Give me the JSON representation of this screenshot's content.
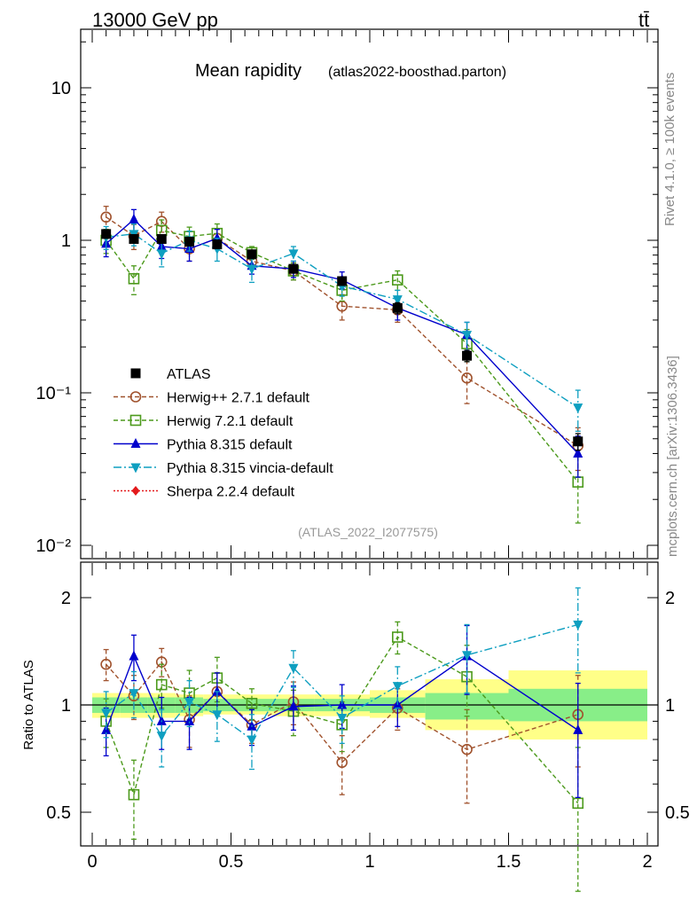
{
  "header": {
    "energy": "13000 GeV pp",
    "process": "tt̄",
    "title_main": "Mean rapidity",
    "title_sub": "(atlas2022-boosthad.parton)",
    "analysis_id": "(ATLAS_2022_I2077575)",
    "side_rivet": "Rivet 4.1.0, ≥ 100k events",
    "side_mcplots": "mcplots.cern.ch [arXiv:1306.3436]"
  },
  "chart_data": [
    {
      "type": "scatter",
      "scale": "log",
      "title": "Mean rapidity (atlas2022-boosthad.parton)",
      "ylim": [
        0.01,
        25
      ],
      "y_ticks": [
        {
          "value": 10,
          "label": "10"
        },
        {
          "value": 1,
          "label": "1"
        },
        {
          "value": 0.1,
          "label": "10⁻¹"
        },
        {
          "value": 0.01,
          "label": "10⁻²"
        }
      ],
      "x": [
        0.05,
        0.15,
        0.25,
        0.35,
        0.45,
        0.575,
        0.725,
        0.9,
        1.1,
        1.35,
        1.75
      ],
      "series": [
        {
          "name": "ATLAS",
          "color": "#000000",
          "marker": "square-filled",
          "line": "none",
          "values": [
            1.1,
            1.02,
            1.02,
            0.98,
            0.94,
            0.81,
            0.65,
            0.54,
            0.36,
            0.175,
            0.048
          ],
          "errors": [
            0.07,
            0.06,
            0.06,
            0.06,
            0.05,
            0.04,
            0.04,
            0.03,
            0.03,
            0.015,
            0.006
          ]
        },
        {
          "name": "Herwig++ 2.7.1 default",
          "color": "#a0522d",
          "marker": "circle-open",
          "line": "dashed",
          "values": [
            1.42,
            1.07,
            1.33,
            0.88,
            1.03,
            0.73,
            0.63,
            0.37,
            0.35,
            0.125,
            0.045
          ],
          "errors": [
            0.25,
            0.2,
            0.2,
            0.15,
            0.15,
            0.08,
            0.08,
            0.07,
            0.06,
            0.04,
            0.014
          ]
        },
        {
          "name": "Herwig 7.2.1 default",
          "color": "#4c9a1c",
          "marker": "square-open",
          "line": "dashed",
          "values": [
            1.0,
            0.56,
            1.16,
            1.06,
            1.11,
            0.83,
            0.63,
            0.47,
            0.55,
            0.21,
            0.026
          ],
          "errors": [
            0.18,
            0.12,
            0.2,
            0.16,
            0.17,
            0.08,
            0.08,
            0.07,
            0.08,
            0.05,
            0.012
          ]
        },
        {
          "name": "Pythia 8.315 default",
          "color": "#0000cc",
          "marker": "triangle-up-filled",
          "line": "solid",
          "values": [
            0.95,
            1.37,
            0.91,
            0.88,
            1.03,
            0.68,
            0.65,
            0.55,
            0.36,
            0.24,
            0.04
          ],
          "errors": [
            0.17,
            0.22,
            0.15,
            0.15,
            0.15,
            0.08,
            0.08,
            0.07,
            0.06,
            0.05,
            0.012
          ]
        },
        {
          "name": "Pythia 8.315 vincia-default",
          "color": "#0e9fc0",
          "marker": "triangle-down-filled",
          "line": "dashdot",
          "values": [
            1.05,
            1.1,
            0.82,
            1.0,
            0.88,
            0.65,
            0.82,
            0.5,
            0.41,
            0.24,
            0.08
          ],
          "errors": [
            0.18,
            0.18,
            0.15,
            0.15,
            0.15,
            0.12,
            0.09,
            0.07,
            0.06,
            0.05,
            0.024
          ]
        },
        {
          "name": "Sherpa 2.2.4 default",
          "color": "#e31a1c",
          "marker": "diamond-filled",
          "line": "dotted",
          "values": [],
          "errors": []
        }
      ]
    },
    {
      "type": "scatter",
      "scale": "log",
      "ylabel": "Ratio to ATLAS",
      "xlim": [
        0,
        2
      ],
      "ylim": [
        0.38,
        2.5
      ],
      "y_ticks": [
        {
          "value": 2,
          "label": "2"
        },
        {
          "value": 1,
          "label": "1"
        },
        {
          "value": 0.5,
          "label": "0.5"
        }
      ],
      "x_ticks": [
        {
          "value": 0,
          "label": "0"
        },
        {
          "value": 0.5,
          "label": "0.5"
        },
        {
          "value": 1,
          "label": "1"
        },
        {
          "value": 1.5,
          "label": "1.5"
        },
        {
          "value": 2,
          "label": "2"
        }
      ],
      "bin_edges": [
        0,
        0.1,
        0.2,
        0.3,
        0.4,
        0.5,
        0.65,
        0.8,
        1.0,
        1.2,
        1.5,
        2.0
      ],
      "band_stat": [
        [
          0.95,
          1.05
        ],
        [
          0.95,
          1.05
        ],
        [
          0.95,
          1.05
        ],
        [
          0.95,
          1.05
        ],
        [
          0.96,
          1.04
        ],
        [
          0.96,
          1.04
        ],
        [
          0.96,
          1.04
        ],
        [
          0.96,
          1.04
        ],
        [
          0.95,
          1.05
        ],
        [
          0.91,
          1.08
        ],
        [
          0.9,
          1.11
        ]
      ],
      "band_total": [
        [
          0.92,
          1.08
        ],
        [
          0.92,
          1.08
        ],
        [
          0.92,
          1.08
        ],
        [
          0.93,
          1.07
        ],
        [
          0.94,
          1.07
        ],
        [
          0.94,
          1.07
        ],
        [
          0.93,
          1.07
        ],
        [
          0.93,
          1.07
        ],
        [
          0.92,
          1.1
        ],
        [
          0.85,
          1.18
        ],
        [
          0.8,
          1.25
        ]
      ],
      "ratios": [
        {
          "name": "Herwig++ 2.7.1 default",
          "values": [
            1.3,
            1.06,
            1.32,
            0.91,
            1.09,
            0.88,
            1.02,
            0.69,
            0.98,
            0.75,
            0.94
          ],
          "errors": [
            0.13,
            0.15,
            0.12,
            0.15,
            0.14,
            0.1,
            0.14,
            0.13,
            0.13,
            0.22,
            0.27
          ]
        },
        {
          "name": "Herwig 7.2.1 default",
          "values": [
            0.9,
            0.56,
            1.14,
            1.08,
            1.19,
            1.01,
            0.96,
            0.88,
            1.55,
            1.2,
            0.53
          ],
          "errors": [
            0.14,
            0.14,
            0.16,
            0.17,
            0.17,
            0.1,
            0.14,
            0.14,
            0.16,
            0.27,
            0.23
          ]
        },
        {
          "name": "Pythia 8.315 default",
          "values": [
            0.85,
            1.37,
            0.9,
            0.9,
            1.09,
            0.87,
            0.99,
            1.0,
            1.0,
            1.37,
            0.85
          ],
          "errors": [
            0.13,
            0.2,
            0.15,
            0.15,
            0.14,
            0.1,
            0.14,
            0.14,
            0.13,
            0.3,
            0.3
          ]
        },
        {
          "name": "Pythia 8.315 vincia-default",
          "values": [
            0.95,
            1.08,
            0.82,
            1.02,
            0.94,
            0.8,
            1.27,
            0.92,
            1.13,
            1.38,
            1.68
          ],
          "errors": [
            0.14,
            0.16,
            0.15,
            0.15,
            0.15,
            0.14,
            0.15,
            0.14,
            0.15,
            0.3,
            0.45
          ]
        }
      ]
    }
  ]
}
